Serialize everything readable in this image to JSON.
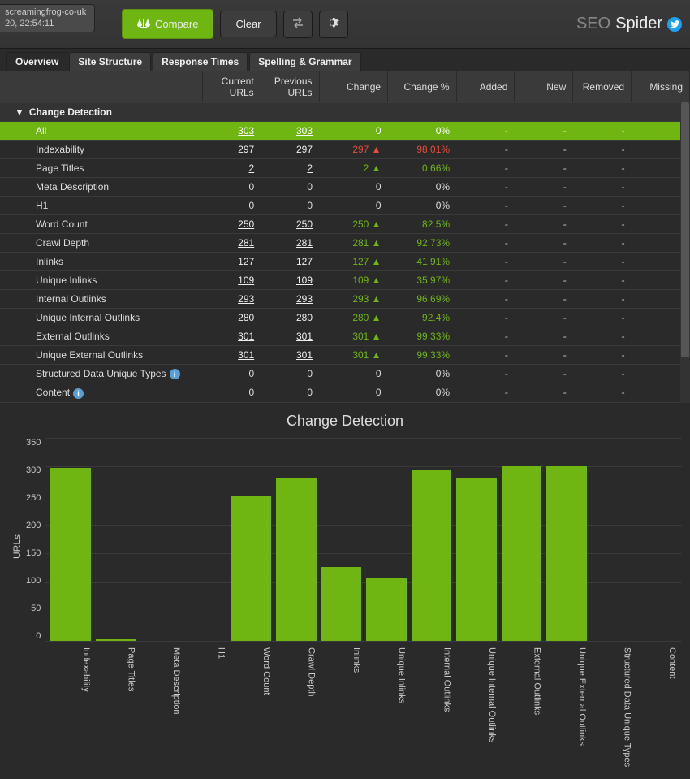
{
  "file_tab": {
    "name": "screamingfrog-co-uk",
    "time": "20, 22:54:11"
  },
  "toolbar": {
    "compare": "Compare",
    "clear": "Clear"
  },
  "brand": {
    "prefix": "SEO",
    "suffix": "Spider"
  },
  "tabs": [
    "Overview",
    "Site Structure",
    "Response Times",
    "Spelling & Grammar"
  ],
  "columns": [
    "",
    "Current URLs",
    "Previous URLs",
    "Change",
    "Change %",
    "Added",
    "New",
    "Removed",
    "Missing"
  ],
  "section": "Change Detection",
  "rows": [
    {
      "name": "All",
      "cur": "303",
      "prev": "303",
      "change": "0",
      "pct": "0%",
      "ul": true,
      "hl": true,
      "dir": null
    },
    {
      "name": "Indexability",
      "cur": "297",
      "prev": "297",
      "change": "297",
      "pct": "98.01%",
      "ul": true,
      "dir": "down"
    },
    {
      "name": "Page Titles",
      "cur": "2",
      "prev": "2",
      "change": "2",
      "pct": "0.66%",
      "ul": true,
      "dir": "up"
    },
    {
      "name": "Meta Description",
      "cur": "0",
      "prev": "0",
      "change": "0",
      "pct": "0%",
      "ul": false,
      "dir": null
    },
    {
      "name": "H1",
      "cur": "0",
      "prev": "0",
      "change": "0",
      "pct": "0%",
      "ul": false,
      "dir": null
    },
    {
      "name": "Word Count",
      "cur": "250",
      "prev": "250",
      "change": "250",
      "pct": "82.5%",
      "ul": true,
      "dir": "up"
    },
    {
      "name": "Crawl Depth",
      "cur": "281",
      "prev": "281",
      "change": "281",
      "pct": "92.73%",
      "ul": true,
      "dir": "up"
    },
    {
      "name": "Inlinks",
      "cur": "127",
      "prev": "127",
      "change": "127",
      "pct": "41.91%",
      "ul": true,
      "dir": "up"
    },
    {
      "name": "Unique Inlinks",
      "cur": "109",
      "prev": "109",
      "change": "109",
      "pct": "35.97%",
      "ul": true,
      "dir": "up"
    },
    {
      "name": "Internal Outlinks",
      "cur": "293",
      "prev": "293",
      "change": "293",
      "pct": "96.69%",
      "ul": true,
      "dir": "up"
    },
    {
      "name": "Unique Internal Outlinks",
      "cur": "280",
      "prev": "280",
      "change": "280",
      "pct": "92.4%",
      "ul": true,
      "dir": "up"
    },
    {
      "name": "External Outlinks",
      "cur": "301",
      "prev": "301",
      "change": "301",
      "pct": "99.33%",
      "ul": true,
      "dir": "up"
    },
    {
      "name": "Unique External Outlinks",
      "cur": "301",
      "prev": "301",
      "change": "301",
      "pct": "99.33%",
      "ul": true,
      "dir": "up"
    },
    {
      "name": "Structured Data Unique Types",
      "cur": "0",
      "prev": "0",
      "change": "0",
      "pct": "0%",
      "ul": false,
      "dir": null,
      "info": true
    },
    {
      "name": "Content",
      "cur": "0",
      "prev": "0",
      "change": "0",
      "pct": "0%",
      "ul": false,
      "dir": null,
      "info": true
    }
  ],
  "chart": {
    "type": "bar",
    "title": "Change Detection",
    "ylabel": "URLs",
    "ymax": 350,
    "ytick_step": 50,
    "bar_color": "#6fb613",
    "background_color": "#2a2a2a",
    "grid_color": "#3a3a3a",
    "text_color": "#cccccc",
    "label_fontsize": 11,
    "title_fontsize": 18,
    "categories": [
      "Indexability",
      "Page Titles",
      "Meta Description",
      "H1",
      "Word Count",
      "Crawl Depth",
      "Inlinks",
      "Unique Inlinks",
      "Internal Outlinks",
      "Unique Internal Outlinks",
      "External Outlinks",
      "Unique External Outlinks",
      "Structured Data Unique Types",
      "Content"
    ],
    "values": [
      297,
      2,
      0,
      0,
      250,
      281,
      127,
      109,
      293,
      280,
      301,
      301,
      0,
      0
    ]
  },
  "colors": {
    "accent": "#6fb613",
    "up": "#6fb613",
    "down": "#e74c3c"
  }
}
